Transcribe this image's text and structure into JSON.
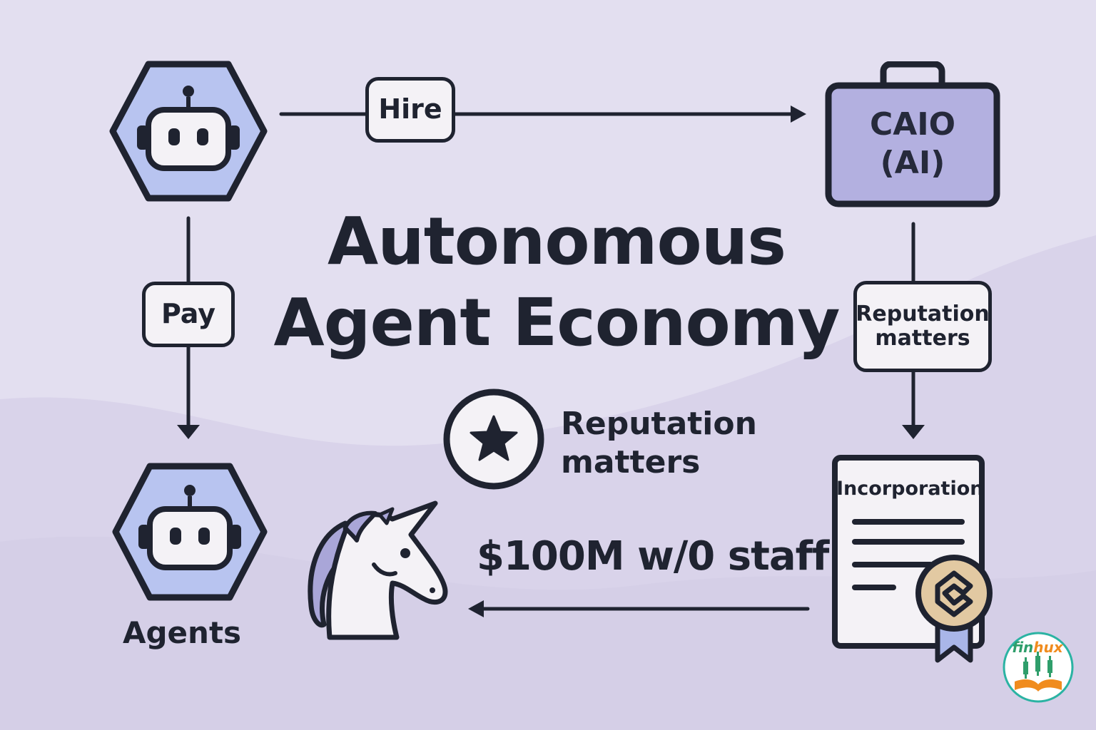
{
  "title": {
    "line1": "Autonomous",
    "line2": "Agent Economy"
  },
  "labels": {
    "hire": "Hire",
    "pay": "Pay",
    "caio_line1": "CAIO",
    "caio_line2": "(AI)",
    "reputation_pill_line1": "Reputation",
    "reputation_pill_line2": "matters",
    "reputation_badge_line1": "Reputation",
    "reputation_badge_line2": "matters",
    "money": "$100M w/0 staff",
    "agents": "Agents",
    "incorporation": "Incorporation"
  },
  "logo": {
    "part1": "fin",
    "part2": "hux"
  },
  "icons": [
    "robot-icon",
    "briefcase-icon",
    "star-icon",
    "unicorn-icon",
    "certificate-icon",
    "seal-icon",
    "ribbon-icon",
    "finhux-logo"
  ],
  "colors": {
    "background": "#e3dff0",
    "ink": "#1f2330",
    "robot_hex_fill": "#b8c4f0",
    "briefcase_fill": "#b3b0e0",
    "pill_fill": "#f4f2f6",
    "seal_fill": "#e2c9a2",
    "ribbon_fill": "#a9b6e8"
  }
}
